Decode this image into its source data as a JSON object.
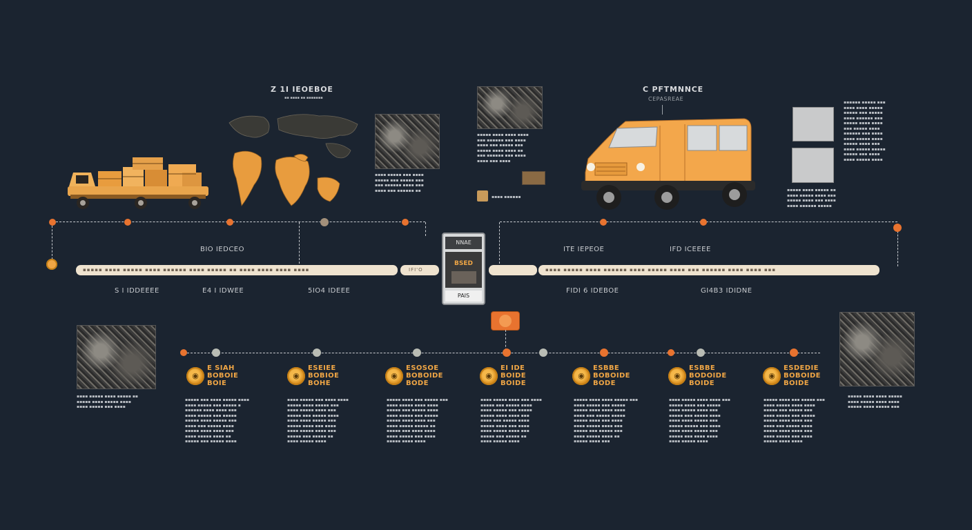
{
  "top_labels": {
    "first": "Z 1I IEOEBOE",
    "first_sub": "▪▪ ▪▪▪▪ ▪▪ ▪▪▪▪▪▪▪",
    "second": "C PFTMNNCE",
    "second_sub": "CEPASREAE"
  },
  "timeline_upper_labels": [
    "BIO IEDCEO",
    "ITE IEPEOE",
    "IFD ICEEEE"
  ],
  "timeline_lower_labels": [
    "S I IDDEEEE",
    "E4 I IDWEE",
    "5IO4 IDEEE",
    "FIDI 6 IDEBOE",
    "GI4B3 IDIDNE"
  ],
  "bar_texts": {
    "left": "▪▪▪▪▪ ▪▪▪▪ ▪▪▪▪▪   ▪▪▪▪ ▪▪▪▪▪▪ ▪▪▪▪   ▪▪▪▪▪ ▪▪ ▪▪▪▪   ▪▪▪▪ ▪▪▪▪ ▪▪▪▪",
    "stub": "IFI'O",
    "right": "▪▪▪▪ ▪▪▪▪▪ ▪▪▪▪   ▪▪▪▪▪▪ ▪▪▪▪ ▪▪▪▪▪   ▪▪▪▪ ▪▪▪ ▪▪▪▪▪▪   ▪▪▪▪ ▪▪▪▪ ▪▪▪"
  },
  "device": {
    "top": "NNAE",
    "screen": "BSED",
    "bottom": "PAIS"
  },
  "top_descriptions": {
    "map_caption": "▪▪▪▪ ▪▪▪▪▪ ▪▪▪ ▪▪▪▪\n▪▪▪▪▪ ▪▪▪ ▪▪▪▪▪ ▪▪▪\n▪▪▪ ▪▪▪▪▪▪ ▪▪▪▪ ▪▪▪\n▪▪▪▪ ▪▪▪ ▪▪▪▪▪▪ ▪▪",
    "photo2_caption": "▪▪▪▪▪ ▪▪▪▪ ▪▪▪▪ ▪▪▪▪\n▪▪▪ ▪▪▪▪▪▪ ▪▪▪ ▪▪▪▪\n▪▪▪▪ ▪▪▪ ▪▪▪▪▪ ▪▪▪\n▪▪▪▪▪ ▪▪▪▪ ▪▪▪▪ ▪▪\n▪▪▪ ▪▪▪▪▪▪ ▪▪▪ ▪▪▪▪\n▪▪▪▪ ▪▪▪ ▪▪▪▪",
    "photo2_footer": "▪▪▪▪ ▪▪▪▪▪▪",
    "right_column": "▪▪▪▪▪▪ ▪▪▪▪▪ ▪▪▪\n▪▪▪▪ ▪▪▪▪ ▪▪▪▪▪\n▪▪▪▪▪ ▪▪▪ ▪▪▪▪▪\n▪▪▪▪ ▪▪▪▪▪▪ ▪▪▪\n▪▪▪▪▪ ▪▪▪▪ ▪▪▪▪\n▪▪▪ ▪▪▪▪▪ ▪▪▪▪\n▪▪▪▪▪▪ ▪▪▪ ▪▪▪▪\n▪▪▪▪ ▪▪▪▪▪ ▪▪▪▪\n▪▪▪▪▪ ▪▪▪▪ ▪▪▪\n▪▪▪▪ ▪▪▪▪▪ ▪▪▪▪▪\n▪▪▪▪▪ ▪▪▪ ▪▪▪▪\n▪▪▪▪ ▪▪▪▪▪ ▪▪▪▪",
    "right_column_lower": "▪▪▪▪▪ ▪▪▪▪ ▪▪▪▪▪ ▪▪\n▪▪▪▪ ▪▪▪▪▪ ▪▪▪▪ ▪▪▪\n▪▪▪▪▪ ▪▪▪▪ ▪▪▪ ▪▪▪▪\n▪▪▪▪ ▪▪▪▪▪▪ ▪▪▪▪▪"
  },
  "side_captions": {
    "left": "▪▪▪▪ ▪▪▪▪▪ ▪▪▪▪ ▪▪▪▪▪ ▪▪\n▪▪▪▪▪ ▪▪▪▪ ▪▪▪▪▪ ▪▪▪▪\n▪▪▪▪ ▪▪▪▪▪ ▪▪▪ ▪▪▪▪",
    "right": "▪▪▪▪▪ ▪▪▪▪ ▪▪▪▪ ▪▪▪▪▪\n▪▪▪▪ ▪▪▪▪▪ ▪▪▪▪ ▪▪▪▪\n▪▪▪▪▪ ▪▪▪▪ ▪▪▪▪▪ ▪▪▪"
  },
  "milestones": [
    {
      "title": "E SIAH\nBOBOIE\nBOIE",
      "body": "▪▪▪▪▪ ▪▪▪ ▪▪▪▪ ▪▪▪▪▪ ▪▪▪▪\n▪▪▪▪ ▪▪▪▪▪ ▪▪▪ ▪▪▪▪▪ ▪\n▪▪▪▪▪▪ ▪▪▪▪ ▪▪▪▪ ▪▪▪\n▪▪▪▪ ▪▪▪▪▪ ▪▪▪ ▪▪▪▪▪\n▪▪▪▪▪ ▪▪▪▪ ▪▪▪▪▪ ▪▪▪\n▪▪▪▪ ▪▪▪ ▪▪▪▪▪ ▪▪▪▪\n▪▪▪▪▪ ▪▪▪▪ ▪▪▪▪ ▪▪▪\n▪▪▪▪ ▪▪▪▪▪ ▪▪▪▪ ▪▪\n▪▪▪▪▪ ▪▪▪ ▪▪▪▪▪ ▪▪▪▪"
    },
    {
      "title": "ESEIEE\nBOBIOE\nBOHE",
      "body": "▪▪▪▪ ▪▪▪▪▪ ▪▪▪ ▪▪▪▪ ▪▪▪▪\n▪▪▪▪▪ ▪▪▪▪ ▪▪▪▪▪ ▪▪▪\n▪▪▪▪ ▪▪▪▪▪ ▪▪▪▪ ▪▪▪\n▪▪▪▪▪ ▪▪▪ ▪▪▪▪▪ ▪▪▪▪\n▪▪▪▪ ▪▪▪▪ ▪▪▪▪▪ ▪▪▪\n▪▪▪▪▪ ▪▪▪▪ ▪▪▪ ▪▪▪▪\n▪▪▪▪ ▪▪▪▪▪ ▪▪▪▪ ▪▪▪\n▪▪▪▪▪ ▪▪▪ ▪▪▪▪▪ ▪▪\n▪▪▪▪ ▪▪▪▪▪ ▪▪▪▪"
    },
    {
      "title": "ESOSOE\nBOBOIDE\nBODE",
      "body": "▪▪▪▪▪ ▪▪▪▪ ▪▪▪ ▪▪▪▪▪ ▪▪▪\n▪▪▪▪ ▪▪▪▪▪ ▪▪▪▪ ▪▪▪▪\n▪▪▪▪▪ ▪▪▪ ▪▪▪▪▪ ▪▪▪▪\n▪▪▪▪ ▪▪▪▪▪ ▪▪▪ ▪▪▪▪▪\n▪▪▪▪▪ ▪▪▪▪ ▪▪▪▪ ▪▪▪\n▪▪▪▪ ▪▪▪▪▪ ▪▪▪▪▪ ▪▪\n▪▪▪▪▪ ▪▪▪ ▪▪▪▪ ▪▪▪▪\n▪▪▪▪ ▪▪▪▪▪ ▪▪▪ ▪▪▪▪\n▪▪▪▪▪ ▪▪▪▪ ▪▪▪▪"
    },
    {
      "title": "EI IDE\nBOIDE\nBOIDE",
      "body": "▪▪▪▪ ▪▪▪▪▪ ▪▪▪▪ ▪▪▪ ▪▪▪▪\n▪▪▪▪▪ ▪▪▪ ▪▪▪▪▪ ▪▪▪▪\n▪▪▪▪ ▪▪▪▪▪ ▪▪▪ ▪▪▪▪▪\n▪▪▪▪▪ ▪▪▪▪ ▪▪▪▪ ▪▪▪\n▪▪▪▪ ▪▪▪ ▪▪▪▪▪ ▪▪▪▪\n▪▪▪▪▪ ▪▪▪▪ ▪▪▪ ▪▪▪▪\n▪▪▪▪ ▪▪▪▪▪ ▪▪▪▪ ▪▪▪\n▪▪▪▪▪ ▪▪▪ ▪▪▪▪▪ ▪▪\n▪▪▪▪ ▪▪▪▪▪ ▪▪▪▪"
    },
    {
      "title": "ESBBE\nBOBOIDE\nBODE",
      "body": "▪▪▪▪▪ ▪▪▪▪ ▪▪▪▪ ▪▪▪▪▪ ▪▪▪\n▪▪▪▪ ▪▪▪▪▪ ▪▪▪ ▪▪▪▪▪\n▪▪▪▪▪ ▪▪▪▪ ▪▪▪▪ ▪▪▪▪\n▪▪▪▪ ▪▪▪ ▪▪▪▪▪ ▪▪▪▪▪\n▪▪▪▪▪ ▪▪▪▪ ▪▪▪ ▪▪▪▪\n▪▪▪▪ ▪▪▪▪▪ ▪▪▪▪ ▪▪▪\n▪▪▪▪▪ ▪▪▪ ▪▪▪▪▪ ▪▪▪\n▪▪▪▪ ▪▪▪▪▪ ▪▪▪▪ ▪▪\n▪▪▪▪▪ ▪▪▪▪ ▪▪▪"
    },
    {
      "title": "ESBBE\nBODOIDE\nBOIDE",
      "body": "▪▪▪▪ ▪▪▪▪▪ ▪▪▪▪ ▪▪▪▪ ▪▪▪\n▪▪▪▪▪ ▪▪▪▪ ▪▪▪ ▪▪▪▪▪\n▪▪▪▪ ▪▪▪▪▪ ▪▪▪▪ ▪▪▪\n▪▪▪▪▪ ▪▪▪ ▪▪▪▪▪ ▪▪▪▪\n▪▪▪▪ ▪▪▪▪ ▪▪▪▪▪ ▪▪▪\n▪▪▪▪▪ ▪▪▪▪▪ ▪▪▪ ▪▪▪▪\n▪▪▪▪ ▪▪▪▪ ▪▪▪▪▪ ▪▪▪\n▪▪▪▪▪ ▪▪▪ ▪▪▪▪ ▪▪▪▪\n▪▪▪▪ ▪▪▪▪▪ ▪▪▪▪"
    },
    {
      "title": "ESDEDIE\nBOBOIDE\nBOIDE",
      "body": "▪▪▪▪▪ ▪▪▪▪ ▪▪▪ ▪▪▪▪▪ ▪▪▪\n▪▪▪▪ ▪▪▪▪▪ ▪▪▪▪ ▪▪▪▪\n▪▪▪▪▪ ▪▪▪ ▪▪▪▪▪ ▪▪▪\n▪▪▪▪ ▪▪▪▪▪ ▪▪▪ ▪▪▪▪▪\n▪▪▪▪▪ ▪▪▪▪ ▪▪▪▪ ▪▪▪\n▪▪▪▪ ▪▪▪ ▪▪▪▪▪ ▪▪▪▪\n▪▪▪▪▪ ▪▪▪▪ ▪▪▪▪ ▪▪▪\n▪▪▪▪ ▪▪▪▪▪ ▪▪▪ ▪▪▪▪\n▪▪▪▪▪ ▪▪▪▪ ▪▪▪▪"
    }
  ],
  "colors": {
    "background": "#1b2430",
    "accent_orange": "#e8732f",
    "accent_gold": "#f0a645",
    "bar_cream": "#efe3cf",
    "van_orange": "#f3a74b"
  }
}
